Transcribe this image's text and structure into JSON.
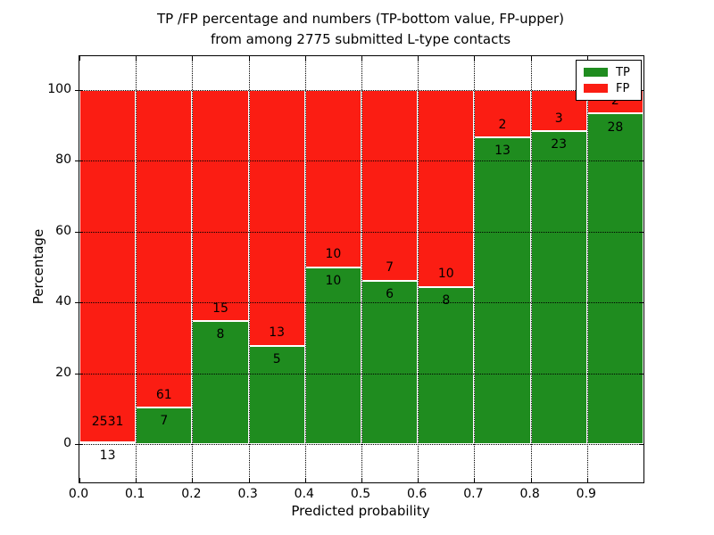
{
  "title": {
    "line1": "TP /FP percentage and numbers (TP-bottom value, FP-upper)",
    "line2": "from among 2775 submitted L-type contacts"
  },
  "axes": {
    "xlabel": "Predicted probability",
    "ylabel": "Percentage",
    "x_tick_labels": [
      "0.0",
      "0.1",
      "0.2",
      "0.3",
      "0.4",
      "0.5",
      "0.6",
      "0.7",
      "0.8",
      "0.9"
    ],
    "y_tick_labels": [
      "0",
      "20",
      "40",
      "60",
      "80",
      "100"
    ]
  },
  "legend": {
    "position": "upper right",
    "items": [
      {
        "label": "TP",
        "color": "#1f8c1f"
      },
      {
        "label": "FP",
        "color": "#fb1d13"
      }
    ]
  },
  "colors": {
    "tp_green": "#1f8c1f",
    "fp_red": "#fb1d13",
    "bar_edge": "#ffffff",
    "grid": "#000000",
    "text": "#000000",
    "background": "#ffffff"
  },
  "chart_data": {
    "type": "bar",
    "stacked": true,
    "normalized_to_percent": true,
    "title": "TP /FP percentage and numbers (TP-bottom value, FP-upper) from among 2775 submitted L-type contacts",
    "xlabel": "Predicted probability",
    "ylabel": "Percentage",
    "total_contacts": 2775,
    "categories": [
      "0.0-0.1",
      "0.1-0.2",
      "0.2-0.3",
      "0.3-0.4",
      "0.4-0.5",
      "0.5-0.6",
      "0.6-0.7",
      "0.7-0.8",
      "0.8-0.9",
      "0.9-1.0"
    ],
    "bin_start": [
      0.0,
      0.1,
      0.2,
      0.3,
      0.4,
      0.5,
      0.6,
      0.7,
      0.8,
      0.9
    ],
    "bin_width": 0.1,
    "series": [
      {
        "name": "TP",
        "color": "#1f8c1f",
        "counts": [
          13,
          7,
          8,
          5,
          10,
          6,
          8,
          13,
          23,
          28
        ]
      },
      {
        "name": "FP",
        "color": "#fb1d13",
        "counts": [
          2531,
          61,
          15,
          13,
          10,
          7,
          10,
          2,
          3,
          2
        ]
      }
    ],
    "tp_percent_of_bin": [
      0.51,
      10.29,
      34.78,
      27.78,
      50.0,
      46.15,
      44.44,
      86.67,
      88.46,
      93.33
    ],
    "xlim": [
      0.0,
      1.0
    ],
    "ylim": [
      -11,
      110
    ],
    "x_ticks": [
      0.0,
      0.1,
      0.2,
      0.3,
      0.4,
      0.5,
      0.6,
      0.7,
      0.8,
      0.9
    ],
    "y_ticks": [
      0,
      20,
      40,
      60,
      80,
      100
    ],
    "grid": "dotted, both axes",
    "legend_position": "upper right"
  }
}
